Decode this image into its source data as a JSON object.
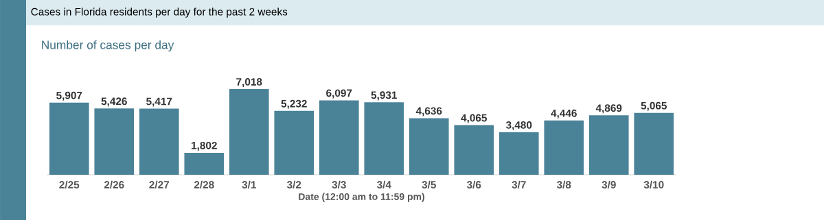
{
  "chart_data": {
    "type": "bar",
    "title": "Cases in Florida residents per day for the past 2 weeks",
    "subtitle": "Number of cases per day",
    "xlabel": "Date (12:00 am to 11:59 pm)",
    "categories": [
      "2/25",
      "2/26",
      "2/27",
      "2/28",
      "3/1",
      "3/2",
      "3/3",
      "3/4",
      "3/5",
      "3/6",
      "3/7",
      "3/8",
      "3/9",
      "3/10"
    ],
    "values": [
      5907,
      5426,
      5417,
      1802,
      7018,
      5232,
      6097,
      5931,
      4636,
      4065,
      3480,
      4446,
      4869,
      5065
    ],
    "value_labels": [
      "5,907",
      "5,426",
      "5,417",
      "1,802",
      "7,018",
      "5,232",
      "6,097",
      "5,931",
      "4,636",
      "4,065",
      "3,480",
      "4,446",
      "4,869",
      "5,065"
    ],
    "color": "#4a8298"
  }
}
